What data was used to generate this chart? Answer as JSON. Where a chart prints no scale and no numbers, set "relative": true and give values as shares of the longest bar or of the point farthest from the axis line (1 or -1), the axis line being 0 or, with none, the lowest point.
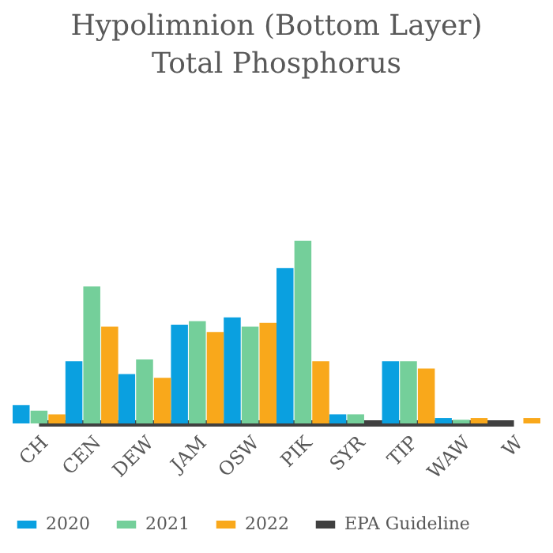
{
  "chart_data": {
    "type": "bar",
    "title": "Hypolimnion (Bottom Layer) Total Phosphorus",
    "relative": true,
    "legend": "bottom",
    "categories": [
      "CH",
      "CEN",
      "DEW",
      "JAM",
      "OSW",
      "PIK",
      "SYR",
      "TIP",
      "WAW",
      "W"
    ],
    "series": [
      {
        "name": "2020",
        "color": "#0aa0e0",
        "values": [
          0.1,
          0.34,
          0.27,
          0.54,
          0.58,
          0.85,
          0.05,
          0.34,
          0.03,
          null
        ]
      },
      {
        "name": "2021",
        "color": "#74cf9a",
        "values": [
          0.07,
          0.75,
          0.35,
          0.56,
          0.53,
          1,
          0.05,
          0.34,
          0.02,
          null
        ]
      },
      {
        "name": "2022",
        "color": "#f9a81b",
        "values": [
          0.05,
          0.53,
          0.25,
          0.5,
          0.55,
          0.34,
          null,
          0.3,
          0.03,
          0.03
        ]
      },
      {
        "name": "EPA Guideline",
        "type": "line",
        "color": "#404040",
        "values": [
          0,
          0,
          0,
          0,
          0,
          0,
          0,
          0,
          0,
          0
        ]
      }
    ]
  }
}
